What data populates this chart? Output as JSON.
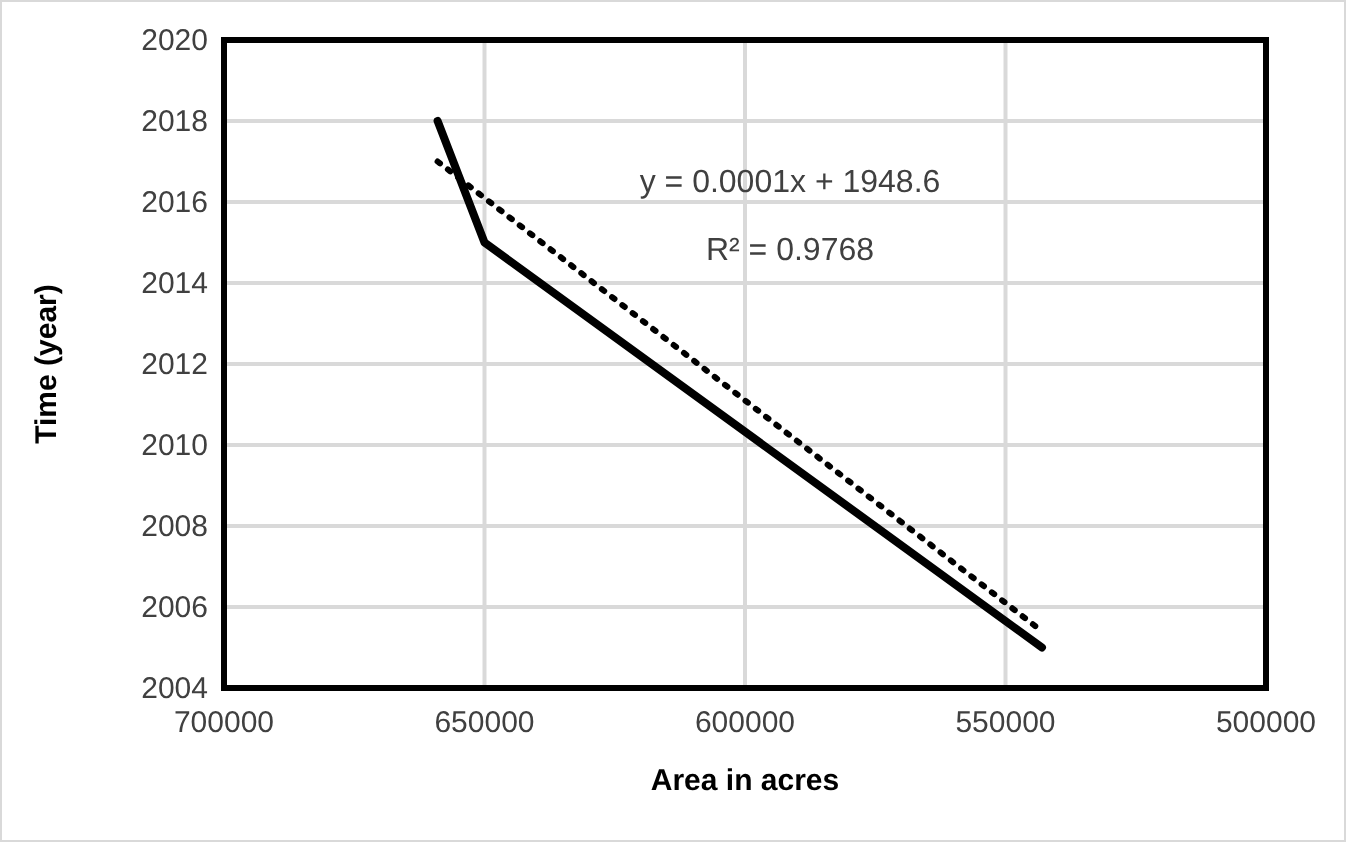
{
  "chart_data": {
    "type": "line",
    "xlabel": "Area in acres",
    "ylabel": "Time (year)",
    "xlim": [
      700000,
      500000
    ],
    "xticks": [
      700000,
      650000,
      600000,
      550000,
      500000
    ],
    "ylim": [
      2004,
      2020
    ],
    "yticks": [
      2004,
      2006,
      2008,
      2010,
      2012,
      2014,
      2016,
      2018,
      2020
    ],
    "grid": true,
    "marker": "none",
    "series": [
      {
        "color": "#000000",
        "x": [
          659000,
          650000,
          543000
        ],
        "values": [
          2018,
          2015,
          2005
        ],
        "line_style": "solid"
      },
      {
        "color": "#000000",
        "x": [
          659000,
          543000
        ],
        "values": [
          2017,
          2005.4
        ],
        "line_style": "dotted"
      }
    ],
    "annotations": [
      "y = 0.0001x + 1948.6",
      "R² = 0.9768"
    ]
  }
}
